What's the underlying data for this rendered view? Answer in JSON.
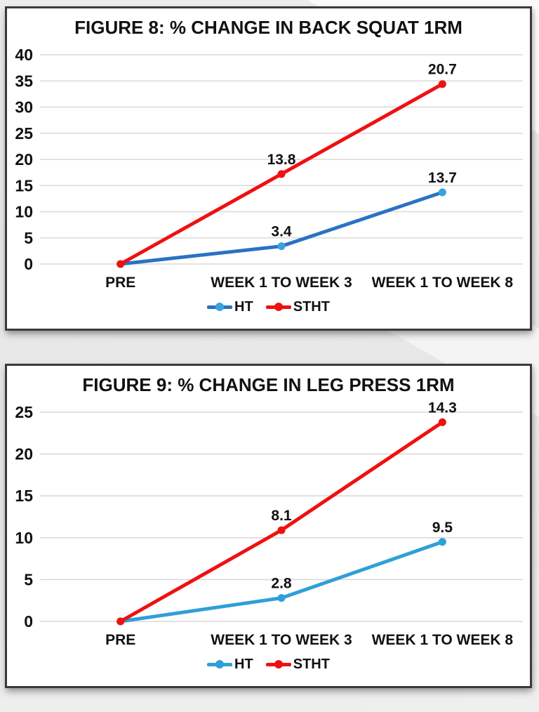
{
  "styles": {
    "background": "#e9e9e9",
    "box_border": "#3a3a3a",
    "grid_color": "#d9d9d9",
    "text_color": "#111111"
  },
  "chart_data": [
    {
      "type": "line",
      "title": "FIGURE 8: % CHANGE IN BACK SQUAT 1RM",
      "categories": [
        "PRE",
        "WEEK 1 TO WEEK 3",
        "WEEK 1 TO WEEK 8"
      ],
      "xlabel": "",
      "ylabel": "",
      "ylim": [
        0,
        40
      ],
      "y_ticks": [
        0,
        5,
        10,
        15,
        20,
        25,
        30,
        35,
        40
      ],
      "grid": true,
      "legend_position": "bottom",
      "stacked_rendering": true,
      "series": [
        {
          "name": "HT",
          "values": [
            0,
            3.4,
            13.7
          ],
          "point_labels": [
            "",
            "3.4",
            "13.7"
          ],
          "line_color": "#2a72c2",
          "marker_color": "#3aa2dc"
        },
        {
          "name": "STHT",
          "values": [
            0,
            13.8,
            20.7
          ],
          "point_labels": [
            "",
            "13.8",
            "20.7"
          ],
          "line_color": "#ee1111",
          "marker_color": "#ee1111"
        }
      ]
    },
    {
      "type": "line",
      "title": "FIGURE 9: % CHANGE IN LEG PRESS 1RM",
      "categories": [
        "PRE",
        "WEEK 1 TO WEEK 3",
        "WEEK 1 TO WEEK 8"
      ],
      "xlabel": "",
      "ylabel": "",
      "ylim": [
        0,
        25
      ],
      "y_ticks": [
        0,
        5,
        10,
        15,
        20,
        25
      ],
      "grid": true,
      "legend_position": "bottom",
      "stacked_rendering": true,
      "series": [
        {
          "name": "HT",
          "values": [
            0,
            2.8,
            9.5
          ],
          "point_labels": [
            "",
            "2.8",
            "9.5"
          ],
          "line_color": "#2f9fd8",
          "marker_color": "#2f9fd8"
        },
        {
          "name": "STHT",
          "values": [
            0,
            8.1,
            14.3
          ],
          "point_labels": [
            "",
            "8.1",
            "14.3"
          ],
          "line_color": "#ee1111",
          "marker_color": "#ee1111"
        }
      ]
    }
  ]
}
